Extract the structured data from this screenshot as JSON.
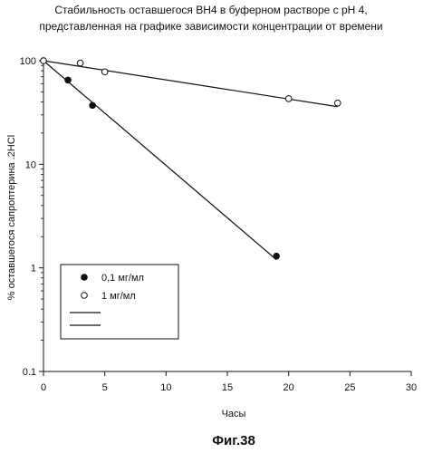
{
  "chart_data": {
    "type": "scatter",
    "title_lines": [
      "Стабильность оставшегося ВН4 в буферном растворе с pH 4,",
      "представленная на графике зависимости концентрации от времени"
    ],
    "xlabel": "Часы",
    "ylabel": "% оставшегося сапроптерина .2HCl",
    "x_ticks": [
      0,
      5,
      10,
      15,
      20,
      25,
      30
    ],
    "y_ticks": [
      0.1,
      1,
      10,
      100
    ],
    "y_tick_labels": [
      "0.1",
      "1",
      "10",
      "100"
    ],
    "xlim": [
      0,
      30
    ],
    "ylim": [
      0.1,
      100
    ],
    "yscale": "log",
    "grid": false,
    "legend_placement": "lower-left",
    "series": [
      {
        "name": "0,1 мг/мл",
        "marker": "filled-circle",
        "x": [
          0,
          2,
          4,
          19
        ],
        "y": [
          100,
          65,
          37,
          1.3
        ],
        "trendline": {
          "x": [
            0,
            19
          ],
          "y": [
            100,
            1.2
          ]
        }
      },
      {
        "name": "1 мг/мл",
        "marker": "open-circle",
        "x": [
          0,
          3,
          5,
          20,
          24
        ],
        "y": [
          100,
          95,
          78,
          43,
          39
        ],
        "trendline": {
          "x": [
            0,
            24
          ],
          "y": [
            100,
            36
          ]
        }
      }
    ]
  },
  "caption": "Фиг.38",
  "colors": {
    "ink": "#111111",
    "background": "#ffffff"
  }
}
